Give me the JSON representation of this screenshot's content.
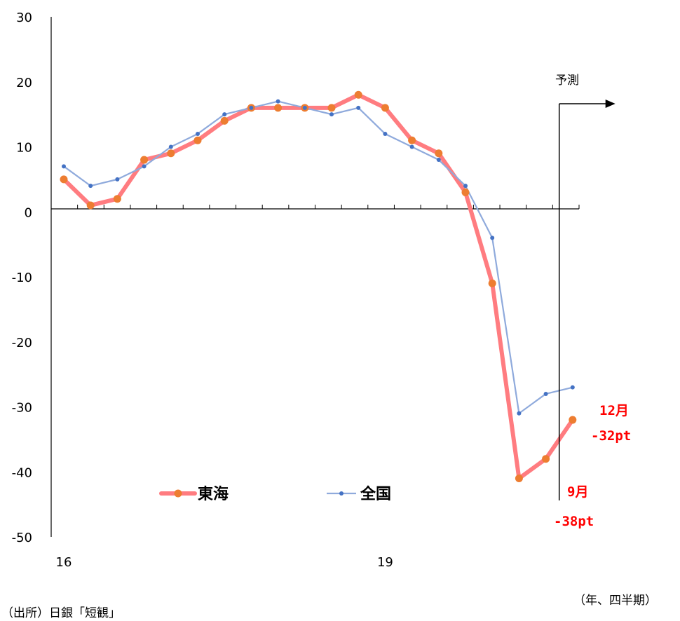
{
  "chart_data": {
    "type": "line",
    "x": [
      "16Q1",
      "16Q2",
      "16Q3",
      "16Q4",
      "17Q1",
      "17Q2",
      "17Q3",
      "17Q4",
      "18Q1",
      "18Q2",
      "18Q3",
      "18Q4",
      "19Q1",
      "19Q2",
      "19Q3",
      "19Q4",
      "20Q1",
      "20Q2",
      "20Q3",
      "20Q4"
    ],
    "x_tick_labels": [
      {
        "index": 0,
        "label": "16"
      },
      {
        "index": 12,
        "label": "19"
      }
    ],
    "ylim": [
      -50,
      30
    ],
    "yticks": [
      30,
      20,
      10,
      0,
      -10,
      -20,
      -30,
      -40,
      -50
    ],
    "series": [
      {
        "name": "東海",
        "color": "#ff7c80",
        "marker_color": "#ed7d31",
        "values": [
          5,
          1,
          2,
          8,
          9,
          11,
          14,
          16,
          16,
          16,
          16,
          18,
          16,
          11,
          9,
          3,
          -11,
          -41,
          -38,
          -32
        ]
      },
      {
        "name": "全国",
        "color": "#8faadc",
        "marker_color": "#4472c4",
        "values": [
          7,
          4,
          5,
          7,
          10,
          12,
          15,
          16,
          17,
          16,
          15,
          16,
          12,
          10,
          8,
          4,
          -4,
          -31,
          -28,
          -27
        ]
      }
    ],
    "forecast_label": "予測",
    "annotations": [
      {
        "lines": [
          "12月",
          "-32pt"
        ]
      },
      {
        "lines": [
          "9月",
          "-38pt"
        ]
      }
    ],
    "unit_note": "（年、四半期）",
    "source_note": "（出所）日銀「短観」"
  }
}
